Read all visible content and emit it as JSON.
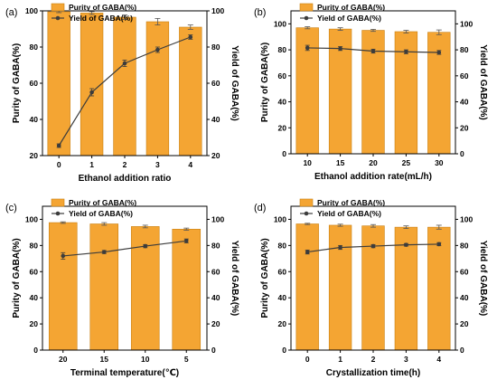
{
  "colors": {
    "bar": "#F4A533",
    "bar_stroke": "#C97F10",
    "line": "#3c3c3c",
    "axis": "#000000"
  },
  "chart_data": [
    {
      "type": "bar",
      "panel_label": "(a)",
      "xlabel": "Ethanol addition ratio",
      "ylabel_left": "Purity of GABA(%)",
      "ylabel_right": "Yield of GABA(%)",
      "categories": [
        "0",
        "1",
        "2",
        "3",
        "4"
      ],
      "ylim_left": [
        20,
        100
      ],
      "yticks_left": [
        20,
        40,
        60,
        80,
        100
      ],
      "ylim_right": [
        20,
        100
      ],
      "yticks_right": [
        20,
        40,
        60,
        80,
        100
      ],
      "legend": [
        "Purity of GABA(%)",
        "Yield of GABA(%)"
      ],
      "legend_position": "top-left",
      "series": [
        {
          "name": "Purity of GABA(%)",
          "kind": "bar",
          "axis": "left",
          "values": [
            99.5,
            98.8,
            96.5,
            94.0,
            91.0
          ],
          "errors": [
            0.5,
            0.8,
            1.2,
            1.8,
            1.2
          ]
        },
        {
          "name": "Yield of GABA(%)",
          "kind": "line",
          "axis": "right",
          "values": [
            25.5,
            55.0,
            71.0,
            78.5,
            85.5
          ],
          "errors": [
            1.0,
            2.0,
            1.8,
            1.5,
            1.2
          ]
        }
      ]
    },
    {
      "type": "bar",
      "panel_label": "(b)",
      "xlabel": "Ethanol addition rate(mL/h)",
      "ylabel_left": "Purity of GABA(%)",
      "ylabel_right": "Yield of GABA(%)",
      "categories": [
        "10",
        "15",
        "20",
        "25",
        "30"
      ],
      "ylim_left": [
        0,
        110
      ],
      "yticks_left": [
        0,
        20,
        40,
        60,
        80,
        100
      ],
      "ylim_right": [
        0,
        110
      ],
      "yticks_right": [
        0,
        20,
        40,
        60,
        80,
        100
      ],
      "legend": [
        "Purity of GABA(%)",
        "Yield of GABA(%)"
      ],
      "legend_position": "top-left",
      "series": [
        {
          "name": "Purity of GABA(%)",
          "kind": "bar",
          "axis": "left",
          "values": [
            97.0,
            96.0,
            95.0,
            94.0,
            93.5
          ],
          "errors": [
            0.8,
            1.0,
            0.8,
            1.0,
            1.8
          ]
        },
        {
          "name": "Yield of GABA(%)",
          "kind": "line",
          "axis": "right",
          "values": [
            81.5,
            81.0,
            79.0,
            78.5,
            78.0
          ],
          "errors": [
            2.0,
            1.5,
            1.5,
            1.5,
            1.5
          ]
        }
      ]
    },
    {
      "type": "bar",
      "panel_label": "(c)",
      "xlabel": "Terminal temperature(℃)",
      "ylabel_left": "Purity of GABA(%)",
      "ylabel_right": "Yield of GABA(%)",
      "categories": [
        "20",
        "15",
        "10",
        "5"
      ],
      "ylim_left": [
        0,
        110
      ],
      "yticks_left": [
        0,
        20,
        40,
        60,
        80,
        100
      ],
      "ylim_right": [
        0,
        110
      ],
      "yticks_right": [
        0,
        20,
        40,
        60,
        80,
        100
      ],
      "legend": [
        "Purity of GABA(%)",
        "Yield of GABA(%)"
      ],
      "legend_position": "top-left",
      "series": [
        {
          "name": "Purity of GABA(%)",
          "kind": "bar",
          "axis": "left",
          "values": [
            97.5,
            96.5,
            94.5,
            92.5
          ],
          "errors": [
            0.6,
            1.0,
            1.0,
            0.8
          ]
        },
        {
          "name": "Yield of GABA(%)",
          "kind": "line",
          "axis": "right",
          "values": [
            72.0,
            75.0,
            79.5,
            83.5
          ],
          "errors": [
            2.5,
            1.2,
            1.2,
            1.5
          ]
        }
      ]
    },
    {
      "type": "bar",
      "panel_label": "(d)",
      "xlabel": "Crystallization time(h)",
      "ylabel_left": "Purity of GABA(%)",
      "ylabel_right": "Yield of GABA(%)",
      "categories": [
        "0",
        "1",
        "2",
        "3",
        "4"
      ],
      "ylim_left": [
        0,
        110
      ],
      "yticks_left": [
        0,
        20,
        40,
        60,
        80,
        100
      ],
      "ylim_right": [
        0,
        110
      ],
      "yticks_right": [
        0,
        20,
        40,
        60,
        80,
        100
      ],
      "legend": [
        "Purity of GABA(%)",
        "Yield of GABA(%)"
      ],
      "legend_position": "top-left",
      "series": [
        {
          "name": "Purity of GABA(%)",
          "kind": "bar",
          "axis": "left",
          "values": [
            96.5,
            95.5,
            95.0,
            94.0,
            94.0
          ],
          "errors": [
            0.5,
            0.8,
            1.0,
            1.0,
            1.5
          ]
        },
        {
          "name": "Yield of GABA(%)",
          "kind": "line",
          "axis": "right",
          "values": [
            75.0,
            78.5,
            79.5,
            80.5,
            81.0
          ],
          "errors": [
            1.5,
            1.5,
            1.2,
            1.0,
            1.2
          ]
        }
      ]
    }
  ]
}
